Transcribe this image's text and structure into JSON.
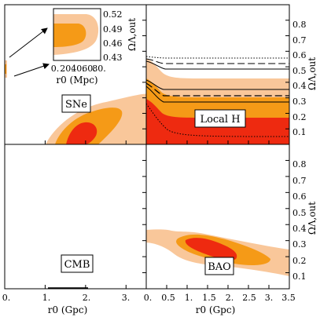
{
  "colors": {
    "light": "#f9c79a",
    "mid": "#f59a17",
    "dark": "#ee2a10",
    "frame": "#000000",
    "arrow": "#000000"
  },
  "chart_data": [
    {
      "type": "contour",
      "panel": "SNe",
      "label": "SNe",
      "xlabel": "",
      "ylabel": "",
      "xlim": [
        0,
        3.5
      ],
      "ylim": [
        0,
        0.9
      ],
      "confidence_regions": [
        "1σ",
        "2σ",
        "3σ"
      ],
      "inset": {
        "xlabel": "r0 (Mpc)",
        "ylabel": "ΩΛ,out",
        "xticks": [
          "0.",
          "20.",
          "40.",
          "60.",
          "80."
        ],
        "yticks": [
          "0.43",
          "0.46",
          "0.49",
          "0.52"
        ],
        "xlim": [
          0,
          80
        ],
        "ylim": [
          0.42,
          0.53
        ]
      }
    },
    {
      "type": "contour",
      "panel": "Local H",
      "label": "Local H",
      "xlim": [
        0,
        3.5
      ],
      "ylim": [
        0,
        0.9
      ],
      "confidence_regions": [
        "1σ",
        "2σ",
        "3σ"
      ],
      "reference_lines": [
        {
          "style": "dotted",
          "y_at_large_r0": 0.54
        },
        {
          "style": "long-dash",
          "y_at_large_r0": 0.5
        },
        {
          "style": "solid",
          "y_at_large_r0": 0.46
        },
        {
          "style": "solid",
          "y_at_large_r0": 0.34
        },
        {
          "style": "long-dash",
          "y_at_large_r0": 0.29
        },
        {
          "style": "solid",
          "y_at_large_r0": 0.24
        },
        {
          "style": "dotted",
          "y_at_large_r0": 0.05
        }
      ]
    },
    {
      "type": "contour",
      "panel": "CMB",
      "label": "CMB",
      "xlim": [
        0,
        3.5
      ],
      "ylim": [
        0,
        0.9
      ],
      "confidence_regions": [
        "1σ"
      ],
      "region_x_range": [
        1.0,
        2.1
      ],
      "region_y": 0.003
    },
    {
      "type": "contour",
      "panel": "BAO",
      "label": "BAO",
      "xlim": [
        0,
        3.5
      ],
      "ylim": [
        0,
        0.9
      ],
      "confidence_regions": [
        "1σ",
        "2σ",
        "3σ"
      ]
    }
  ],
  "axes": {
    "right_ylabel": "ΩΛ,out",
    "yticks": [
      "0.1",
      "0.2",
      "0.3",
      "0.4",
      "0.5",
      "0.6",
      "0.7",
      "0.8"
    ],
    "left_xticks": [
      "0.",
      "1.",
      "2.",
      "3."
    ],
    "right_xticks": [
      "0.",
      "0.5",
      "1.",
      "1.5",
      "2.",
      "2.5",
      "3.",
      "3.5"
    ],
    "xlabel": "r0 (Gpc)"
  }
}
